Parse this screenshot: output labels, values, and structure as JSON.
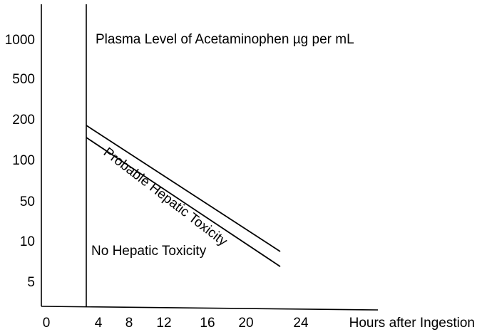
{
  "chart_data": {
    "type": "line",
    "title": "Plasma Level of Acetaminophen µg per mL",
    "xlabel": "Hours after Ingestion",
    "ylabel": "",
    "x_ticks": [
      0,
      4,
      8,
      12,
      16,
      20,
      24
    ],
    "y_ticks": [
      5,
      10,
      50,
      100,
      200,
      500,
      1000
    ],
    "yscale": "log",
    "grid": false,
    "series": [
      {
        "name": "",
        "x": [
          4,
          23
        ],
        "y": [
          200,
          10
        ]
      },
      {
        "name": "",
        "x": [
          4,
          23
        ],
        "y": [
          150,
          7
        ]
      }
    ],
    "annotations": {
      "upper_region": "Probable Hepatic Toxicity",
      "lower_region": "No Hepatic Toxicity"
    }
  }
}
